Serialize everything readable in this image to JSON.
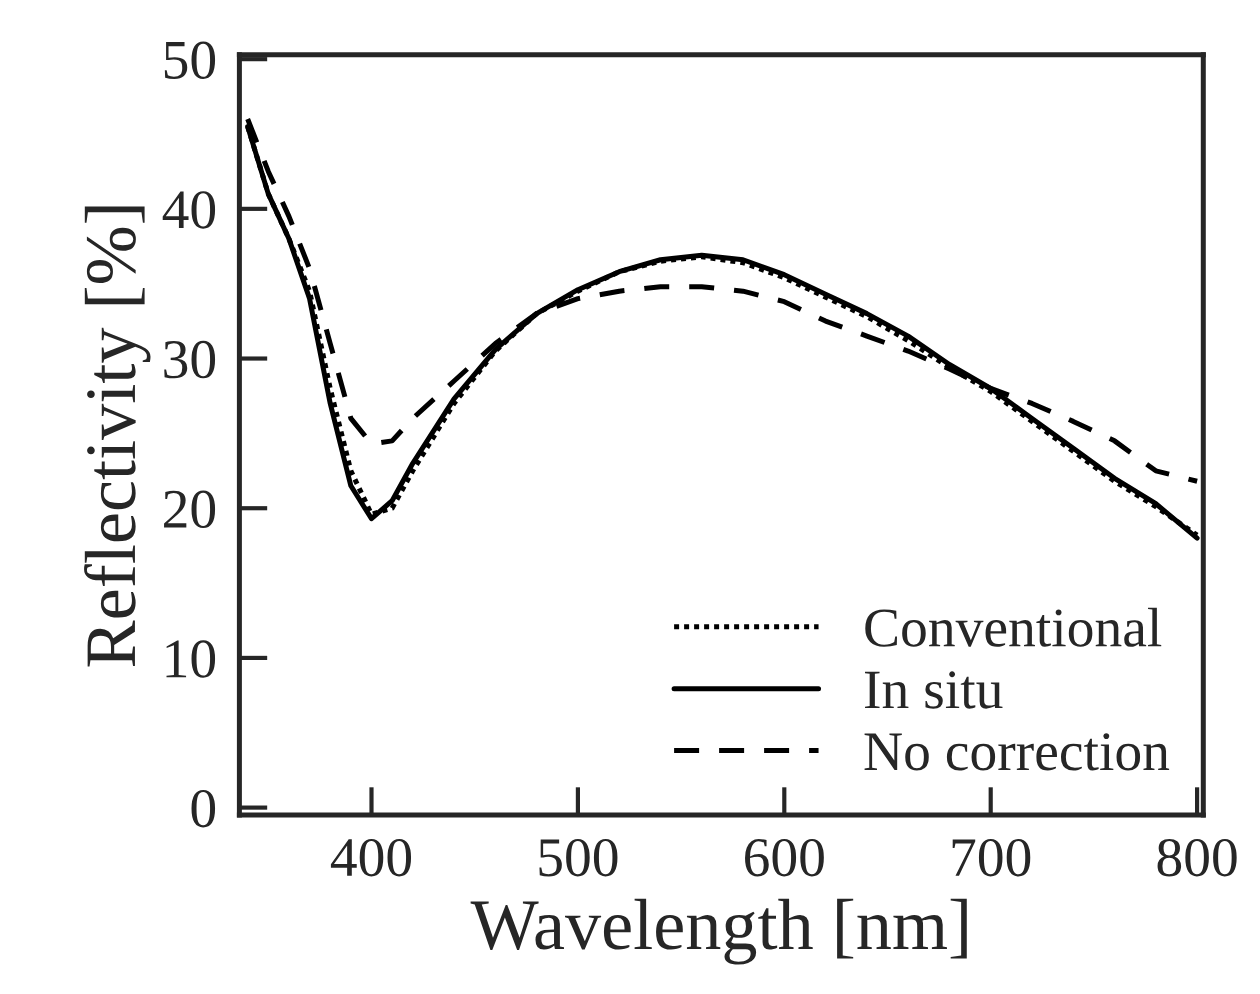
{
  "chart_data": {
    "type": "line",
    "xlabel": "Wavelength [nm]",
    "ylabel": "Reflectivity [%]",
    "x": [
      340,
      350,
      360,
      370,
      380,
      390,
      400,
      410,
      420,
      440,
      460,
      480,
      500,
      520,
      540,
      560,
      580,
      600,
      620,
      640,
      660,
      680,
      700,
      720,
      740,
      760,
      780,
      800
    ],
    "series": [
      {
        "name": "Conventional",
        "color": "#000000",
        "line_style": "dotted",
        "values": [
          45.5,
          41,
          38,
          34.5,
          28,
          22.5,
          19.6,
          20,
          22.5,
          27,
          30.5,
          33,
          34.5,
          35.8,
          36.5,
          36.8,
          36.4,
          35.4,
          34.1,
          32.8,
          31.2,
          29.4,
          27.8,
          25.8,
          23.8,
          21.8,
          20.1,
          18.2
        ]
      },
      {
        "name": "In situ",
        "color": "#000000",
        "line_style": "solid",
        "values": [
          45.5,
          41,
          38,
          34,
          27,
          21.5,
          19.3,
          20.5,
          23,
          27.3,
          30.6,
          33,
          34.6,
          35.8,
          36.6,
          36.9,
          36.6,
          35.6,
          34.3,
          33,
          31.5,
          29.6,
          28,
          26,
          24,
          22,
          20.3,
          18
        ]
      },
      {
        "name": "No correction",
        "color": "#000000",
        "line_style": "dashed",
        "values": [
          46,
          42.5,
          39.5,
          36,
          31,
          26,
          24.3,
          24.5,
          26,
          28.5,
          31,
          33,
          34,
          34.5,
          34.8,
          34.8,
          34.5,
          33.8,
          32.5,
          31.5,
          30.5,
          29.3,
          28,
          27,
          25.8,
          24.5,
          22.5,
          21.8
        ]
      }
    ],
    "xlim": [
      336,
      803
    ],
    "ylim": [
      -0.5,
      50.3
    ],
    "xticks": [
      400,
      500,
      600,
      700,
      800
    ],
    "yticks": [
      0,
      10,
      20,
      30,
      40,
      50
    ],
    "legend": "bottom right",
    "grid": false
  }
}
